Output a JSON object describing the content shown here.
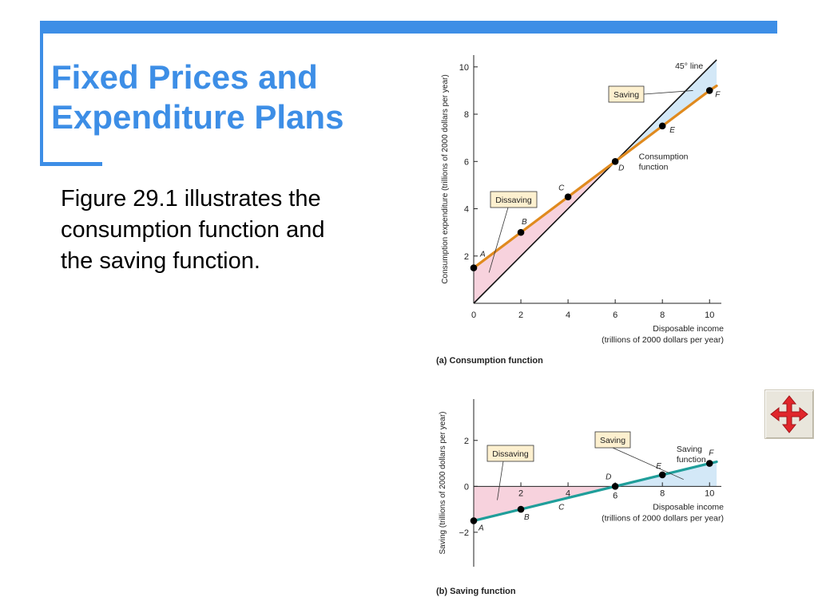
{
  "slide": {
    "title_lines": [
      "Fixed Prices and",
      "Expenditure Plans"
    ],
    "body_lines": [
      "Figure 29.1 illustrates the",
      "consumption function and",
      "the saving function."
    ],
    "accent_color": "#3d8ee6",
    "nav_icon": "move-arrows-icon"
  },
  "chart_data": [
    {
      "type": "line",
      "caption": "(a) Consumption function",
      "xlabel_lines": [
        "Disposable income",
        "(trillions of 2000 dollars per year)"
      ],
      "ylabel": "Consumption expenditure (trillions of 2000 dollars per year)",
      "xlim": [
        0,
        10.5
      ],
      "ylim": [
        0,
        10.5
      ],
      "x_ticks": [
        0,
        2,
        4,
        6,
        8,
        10
      ],
      "y_ticks": [
        2,
        4,
        6,
        8,
        10
      ],
      "series": [
        {
          "name": "Consumption function",
          "color": "#e08a1e",
          "x": [
            0,
            2,
            4,
            6,
            8,
            10,
            10.3
          ],
          "y": [
            1.5,
            3,
            4.5,
            6,
            7.5,
            9,
            9.2
          ],
          "points": [
            {
              "label": "A",
              "x": 0,
              "y": 1.5
            },
            {
              "label": "B",
              "x": 2,
              "y": 3
            },
            {
              "label": "C",
              "x": 4,
              "y": 4.5
            },
            {
              "label": "D",
              "x": 6,
              "y": 6
            },
            {
              "label": "E",
              "x": 8,
              "y": 7.5
            },
            {
              "label": "F",
              "x": 10,
              "y": 9
            }
          ]
        },
        {
          "name": "45° line",
          "color": "#111111",
          "x": [
            0,
            10.3
          ],
          "y": [
            0,
            10.3
          ]
        }
      ],
      "annotations": [
        {
          "text": "45° line"
        },
        {
          "text_lines": [
            "Consumption",
            "function"
          ]
        },
        {
          "text": "Saving",
          "boxed": true
        },
        {
          "text": "Dissaving",
          "boxed": true
        }
      ],
      "shading": {
        "dissaving_color": "#f7d2dd",
        "saving_color": "#d3e8f7",
        "box_color": "#fdf0cf"
      }
    },
    {
      "type": "line",
      "caption": "(b) Saving function",
      "xlabel_lines": [
        "Disposable income",
        "(trillions of 2000 dollars per year)"
      ],
      "ylabel": "Saving (trillions of 2000 dollars per year)",
      "xlim": [
        0,
        10.5
      ],
      "ylim": [
        -3.5,
        3.8
      ],
      "x_ticks": [
        2,
        4,
        6,
        8,
        10
      ],
      "y_ticks": [
        2,
        0,
        -2
      ],
      "y_tick_labels": [
        "2",
        "0",
        "−2"
      ],
      "series": [
        {
          "name": "Saving function",
          "color": "#1f9e9a",
          "x": [
            0,
            2,
            4,
            6,
            8,
            10,
            10.3
          ],
          "y": [
            -1.5,
            -1,
            -0.5,
            0,
            0.5,
            1,
            1.07
          ],
          "points": [
            {
              "label": "A",
              "x": 0,
              "y": -1.5
            },
            {
              "label": "B",
              "x": 2,
              "y": -1
            },
            {
              "label": "C",
              "x": 4,
              "y": -0.5
            },
            {
              "label": "D",
              "x": 6,
              "y": 0
            },
            {
              "label": "E",
              "x": 8,
              "y": 0.5
            },
            {
              "label": "F",
              "x": 10,
              "y": 1
            }
          ]
        }
      ],
      "annotations": [
        {
          "text_lines": [
            "Saving",
            "function"
          ]
        },
        {
          "text": "Saving",
          "boxed": true
        },
        {
          "text": "Dissaving",
          "boxed": true
        }
      ]
    }
  ]
}
